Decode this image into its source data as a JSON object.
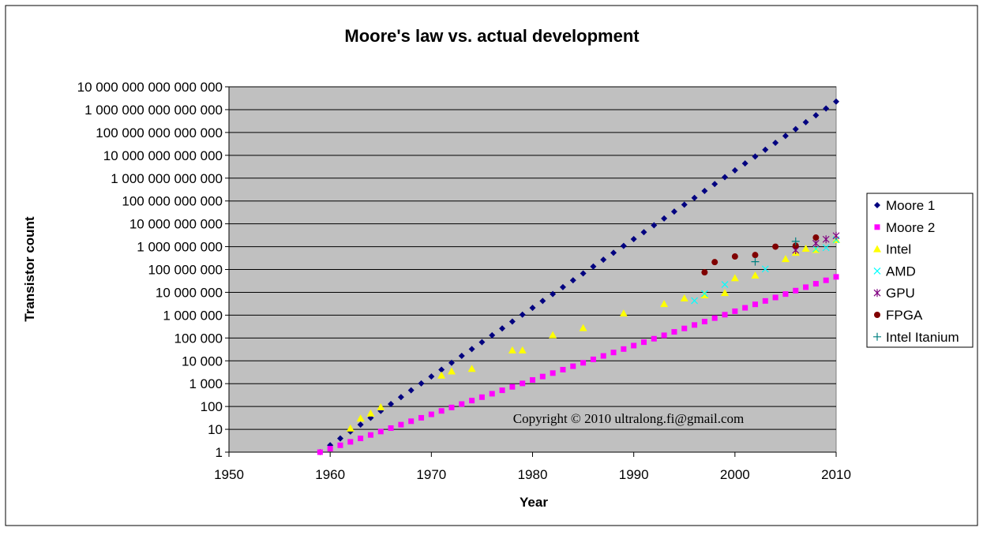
{
  "chart_data": {
    "type": "scatter",
    "title": "Moore's law vs. actual development",
    "xlabel": "Year",
    "ylabel": "Transistor count",
    "xlim": [
      1950,
      2010
    ],
    "ylim": [
      1,
      10000000000000000
    ],
    "yscale": "log",
    "grid": "horizontal",
    "legend": "right",
    "annotation": "Copyright © 2010 ultralong.fi@gmail.com",
    "x_ticks": [
      "1950",
      "1960",
      "1970",
      "1980",
      "1990",
      "2000",
      "2010"
    ],
    "y_ticks": [
      "1",
      "10",
      "100",
      "1 000",
      "10 000",
      "100 000",
      "1 000 000",
      "10 000 000",
      "100 000 000",
      "1 000 000 000",
      "10 000 000 000",
      "100 000 000 000",
      "1 000 000 000 000",
      "10 000 000 000 000",
      "100 000 000 000 000",
      "1 000 000 000 000 000",
      "10 000 000 000 000 000"
    ],
    "series": [
      {
        "name": "Moore 1",
        "marker": "diamond",
        "color": "#000080",
        "rule": "doubling every year from 1 in 1959",
        "x_range": [
          1959,
          2010
        ]
      },
      {
        "name": "Moore 2",
        "marker": "square",
        "color": "#ff00ff",
        "rule": "doubling every two years from 1 in 1959",
        "x_range": [
          1959,
          2010
        ]
      },
      {
        "name": "Intel",
        "marker": "triangle",
        "color": "#ffff00",
        "points": [
          [
            1962,
            11
          ],
          [
            1963,
            30
          ],
          [
            1964,
            50
          ],
          [
            1965,
            93
          ],
          [
            1971,
            2300
          ],
          [
            1972,
            3500
          ],
          [
            1974,
            4500
          ],
          [
            1978,
            29000
          ],
          [
            1979,
            29000
          ],
          [
            1982,
            134000
          ],
          [
            1985,
            275000
          ],
          [
            1989,
            1200000
          ],
          [
            1993,
            3100000
          ],
          [
            1995,
            5500000
          ],
          [
            1997,
            7500000
          ],
          [
            1999,
            9500000
          ],
          [
            2000,
            42000000
          ],
          [
            2002,
            55000000
          ],
          [
            2005,
            290000000
          ],
          [
            2006,
            550000000
          ],
          [
            2007,
            820000000
          ],
          [
            2008,
            730000000
          ],
          [
            2010,
            2000000000
          ]
        ]
      },
      {
        "name": "AMD",
        "marker": "x",
        "color": "#00ffff",
        "points": [
          [
            1996,
            4300000
          ],
          [
            1997,
            8800000
          ],
          [
            1999,
            22000000
          ],
          [
            2003,
            105000000
          ],
          [
            2008,
            800000000
          ],
          [
            2009,
            900000000
          ],
          [
            2010,
            2000000000
          ]
        ]
      },
      {
        "name": "GPU",
        "marker": "asterisk",
        "color": "#800080",
        "points": [
          [
            2006,
            700000000
          ],
          [
            2008,
            1400000000
          ],
          [
            2009,
            2100000000
          ],
          [
            2010,
            3000000000
          ]
        ]
      },
      {
        "name": "FPGA",
        "marker": "circle",
        "color": "#800000",
        "points": [
          [
            1997,
            75000000
          ],
          [
            1998,
            210000000
          ],
          [
            2000,
            370000000
          ],
          [
            2002,
            430000000
          ],
          [
            2004,
            1000000000
          ],
          [
            2006,
            1100000000
          ],
          [
            2008,
            2500000000
          ]
        ]
      },
      {
        "name": "Intel Itanium",
        "marker": "plus",
        "color": "#008080",
        "points": [
          [
            2002,
            220000000
          ],
          [
            2006,
            1700000000
          ]
        ]
      }
    ]
  }
}
